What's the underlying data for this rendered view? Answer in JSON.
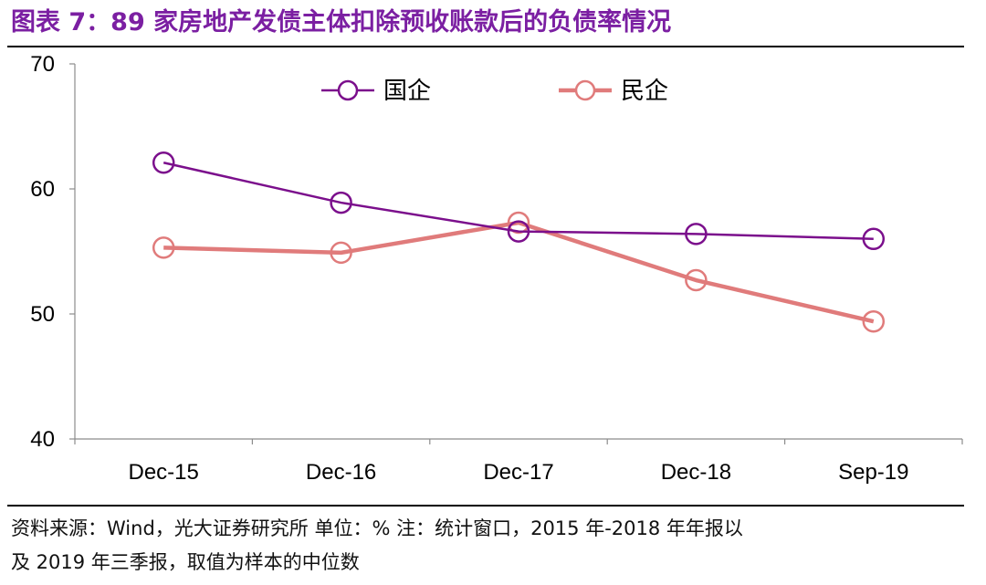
{
  "title": "图表 7：89 家房地产发债主体扣除预收账款后的负债率情况",
  "footnote": {
    "line1": "资料来源：Wind，光大证券研究所   单位：%   注：统计窗口，2015 年-2018 年年报以",
    "line2": "及 2019 年三季报，取值为样本的中位数"
  },
  "chart_data": {
    "type": "line",
    "categories": [
      "Dec-15",
      "Dec-16",
      "Dec-17",
      "Dec-18",
      "Sep-19"
    ],
    "series": [
      {
        "name": "国企",
        "values": [
          62.1,
          58.9,
          56.6,
          56.4,
          56.0
        ],
        "color": "#7b0f8c",
        "marker": "open-circle"
      },
      {
        "name": "民企",
        "values": [
          55.3,
          54.9,
          57.3,
          52.7,
          49.4
        ],
        "color": "#e07b7b",
        "marker": "open-circle"
      }
    ],
    "ylim": [
      40,
      70
    ],
    "yticks": [
      40,
      50,
      60,
      70
    ],
    "legend": "top-center",
    "grid": false
  }
}
